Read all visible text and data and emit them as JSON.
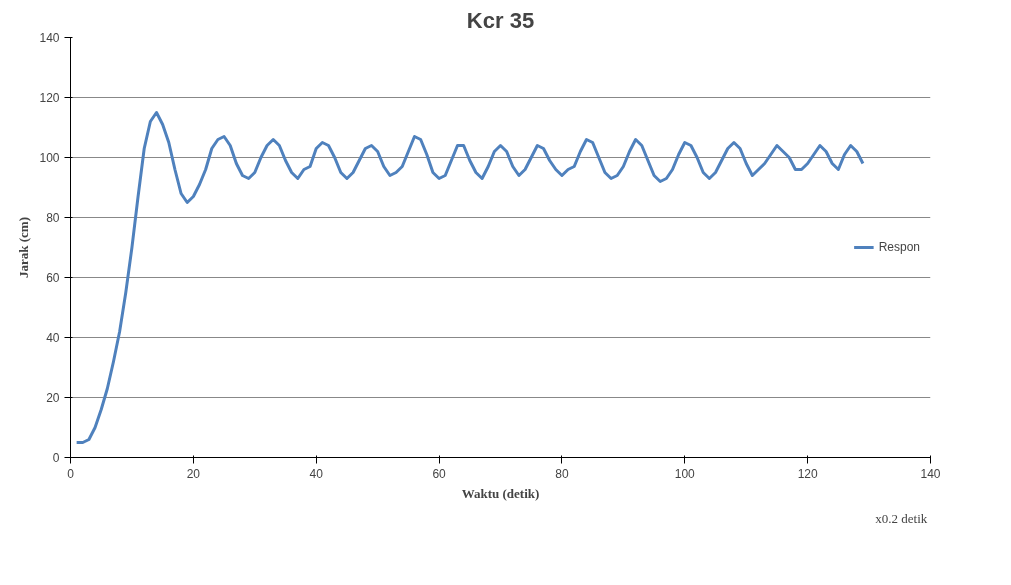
{
  "chart_data": {
    "type": "line",
    "title": "Kcr 35",
    "xlabel": "Waktu (detik)",
    "ylabel": "Jarak (cm)",
    "annotations": [
      "x0.2  detik"
    ],
    "x": [
      1,
      2,
      3,
      4,
      5,
      6,
      7,
      8,
      9,
      10,
      11,
      12,
      13,
      14,
      15,
      16,
      17,
      18,
      19,
      20,
      21,
      22,
      23,
      24,
      25,
      26,
      27,
      28,
      29,
      30,
      31,
      32,
      33,
      34,
      35,
      36,
      37,
      38,
      39,
      40,
      41,
      42,
      43,
      44,
      45,
      46,
      47,
      48,
      49,
      50,
      51,
      52,
      53,
      54,
      55,
      56,
      57,
      58,
      59,
      60,
      61,
      62,
      63,
      64,
      65,
      66,
      67,
      68,
      69,
      70,
      71,
      72,
      73,
      74,
      75,
      76,
      77,
      78,
      79,
      80,
      81,
      82,
      83,
      84,
      85,
      86,
      87,
      88,
      89,
      90,
      91,
      92,
      93,
      94,
      95,
      96,
      97,
      98,
      99,
      100,
      101,
      102,
      103,
      104,
      105,
      106,
      107,
      108,
      109,
      110,
      111,
      112,
      113,
      114,
      115,
      116,
      117,
      118,
      119,
      120,
      121,
      122,
      123,
      124,
      125,
      126,
      127,
      128,
      129
    ],
    "series": [
      {
        "name": "Respon",
        "color": "#4f81bd",
        "values": [
          5,
          5,
          6,
          10,
          16,
          23,
          32,
          42,
          55,
          70,
          87,
          103,
          112,
          115,
          111,
          105,
          96,
          88,
          85,
          87,
          91,
          96,
          103,
          106,
          107,
          104,
          98,
          94,
          93,
          95,
          100,
          104,
          106,
          104,
          99,
          95,
          93,
          96,
          97,
          103,
          105,
          104,
          100,
          95,
          93,
          95,
          99,
          103,
          104,
          102,
          97,
          94,
          95,
          97,
          102,
          107,
          106,
          101,
          95,
          93,
          94,
          99,
          104,
          104,
          99,
          95,
          93,
          97,
          102,
          104,
          102,
          97,
          94,
          96,
          100,
          104,
          103,
          99,
          96,
          94,
          96,
          97,
          102,
          106,
          105,
          100,
          95,
          93,
          94,
          97,
          102,
          106,
          104,
          99,
          94,
          92,
          93,
          96,
          101,
          105,
          104,
          100,
          95,
          93,
          95,
          99,
          103,
          105,
          103,
          98,
          94,
          96,
          98,
          101,
          104,
          102,
          100,
          96,
          96,
          98,
          101,
          104,
          102,
          98,
          96,
          101,
          104,
          102,
          98
        ]
      }
    ],
    "xlim": [
      0,
      140
    ],
    "ylim": [
      0,
      140
    ],
    "xticks": [
      0,
      20,
      40,
      60,
      80,
      100,
      120,
      140
    ],
    "yticks": [
      0,
      20,
      40,
      60,
      80,
      100,
      120,
      140
    ],
    "grid": "y",
    "legend": "right",
    "marker": "none",
    "line_style": "solid"
  }
}
